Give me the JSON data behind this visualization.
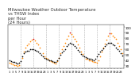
{
  "title": "Milwaukee Weather Outdoor Temperature\nvs THSW Index\nper Hour\n(24 Hours)",
  "title_fontsize": 3.8,
  "title_color": "#333333",
  "bg_color": "#ffffff",
  "grid_color": "#b0b0b0",
  "ylim": [
    25,
    105
  ],
  "yticks": [
    30,
    40,
    50,
    60,
    70,
    80,
    90,
    100
  ],
  "ytick_fontsize": 3.0,
  "xtick_fontsize": 2.5,
  "marker_size": 1.2,
  "temp_color": "#000000",
  "thsw_orange": "#ff8800",
  "thsw_red": "#dd0000",
  "dashed_vlines_x": [
    8,
    16,
    24,
    32,
    40,
    48,
    56,
    64
  ],
  "xlim": [
    0,
    73
  ],
  "temp_x": [
    1,
    2,
    3,
    4,
    5,
    6,
    7,
    8,
    9,
    10,
    11,
    12,
    13,
    14,
    15,
    16,
    17,
    18,
    19,
    20,
    21,
    22,
    23,
    24,
    25,
    26,
    27,
    28,
    29,
    30,
    31,
    32,
    33,
    34,
    35,
    36,
    37,
    38,
    39,
    40,
    41,
    42,
    43,
    44,
    45,
    46,
    47,
    48,
    49,
    50,
    51,
    52,
    53,
    54,
    55,
    56,
    57,
    58,
    59,
    60,
    61,
    62,
    63,
    64,
    65,
    66,
    67,
    68,
    69,
    70,
    71,
    72
  ],
  "temp_y": [
    40,
    38,
    37,
    36,
    35,
    34,
    35,
    38,
    47,
    52,
    55,
    57,
    57,
    59,
    60,
    60,
    58,
    57,
    55,
    52,
    49,
    46,
    44,
    42,
    41,
    40,
    39,
    38,
    37,
    37,
    40,
    44,
    50,
    54,
    57,
    60,
    65,
    69,
    72,
    70,
    68,
    65,
    62,
    58,
    55,
    51,
    48,
    46,
    45,
    44,
    43,
    42,
    41,
    40,
    42,
    46,
    51,
    55,
    58,
    61,
    65,
    68,
    71,
    72,
    71,
    69,
    67,
    63,
    60,
    57,
    52,
    48
  ],
  "thsw_x": [
    1,
    2,
    3,
    4,
    5,
    6,
    7,
    9,
    10,
    11,
    12,
    13,
    14,
    15,
    16,
    17,
    18,
    19,
    20,
    22,
    23,
    24,
    25,
    26,
    27,
    28,
    29,
    30,
    31,
    32,
    33,
    34,
    35,
    36,
    37,
    38,
    39,
    40,
    41,
    42,
    43,
    44,
    45,
    46,
    47,
    49,
    50,
    51,
    52,
    53,
    54,
    55,
    56,
    57,
    58,
    59,
    60,
    61,
    62,
    63,
    64,
    65,
    66,
    67,
    68,
    69,
    70,
    71,
    72
  ],
  "thsw_y": [
    35,
    33,
    32,
    31,
    30,
    29,
    30,
    44,
    55,
    62,
    67,
    70,
    74,
    77,
    79,
    76,
    72,
    68,
    62,
    52,
    47,
    44,
    42,
    40,
    38,
    36,
    35,
    34,
    38,
    44,
    52,
    60,
    66,
    72,
    79,
    85,
    90,
    87,
    83,
    79,
    74,
    68,
    62,
    56,
    51,
    43,
    42,
    40,
    39,
    38,
    37,
    36,
    35,
    39,
    47,
    55,
    63,
    70,
    77,
    84,
    89,
    88,
    85,
    82,
    78,
    72,
    66,
    59,
    53
  ],
  "thsw_colors": [
    "#ff8800",
    "#ff8800",
    "#ff8800",
    "#ff8800",
    "#ff8800",
    "#ff8800",
    "#ff8800",
    "#ff8800",
    "#ff8800",
    "#ff8800",
    "#ff8800",
    "#ff8800",
    "#ff8800",
    "#ff8800",
    "#dd0000",
    "#ff8800",
    "#ff8800",
    "#ff8800",
    "#ff8800",
    "#ff8800",
    "#ff8800",
    "#ff8800",
    "#ff8800",
    "#ff8800",
    "#ff8800",
    "#ff8800",
    "#ff8800",
    "#ff8800",
    "#ff8800",
    "#ff8800",
    "#ff8800",
    "#ff8800",
    "#ff8800",
    "#ff8800",
    "#ff8800",
    "#ff8800",
    "#dd0000",
    "#ff8800",
    "#ff8800",
    "#ff8800",
    "#ff8800",
    "#ff8800",
    "#ff8800",
    "#ff8800",
    "#ff8800",
    "#ff8800",
    "#ff8800",
    "#ff8800",
    "#ff8800",
    "#ff8800",
    "#ff8800",
    "#ff8800",
    "#ff8800",
    "#ff8800",
    "#ff8800",
    "#ff8800",
    "#ff8800",
    "#ff8800",
    "#ff8800",
    "#ff8800",
    "#dd0000",
    "#ff8800",
    "#ff8800",
    "#ff8800",
    "#ff8800",
    "#ff8800",
    "#ff8800",
    "#ff8800",
    "#ff8800"
  ]
}
